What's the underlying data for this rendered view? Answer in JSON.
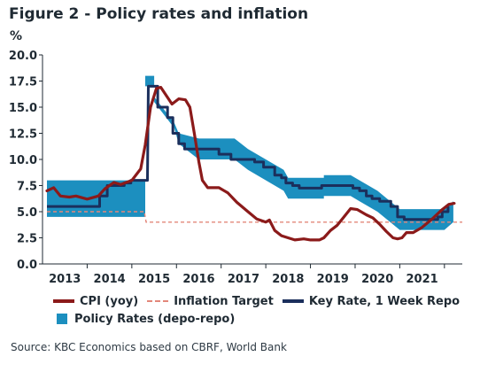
{
  "figure": {
    "title": "Figure 2 - Policy rates and inflation",
    "unit": "%",
    "source": "Source: KBC Economics based on CBRF, World Bank"
  },
  "chart_data": {
    "type": "line",
    "title": "Figure 2 - Policy rates and inflation",
    "ylabel": "%",
    "ylim": [
      0,
      20
    ],
    "yticks": [
      "0.0",
      "2.5",
      "5.0",
      "7.5",
      "10.0",
      "12.5",
      "15.0",
      "17.5",
      "20.0"
    ],
    "xticks": [
      "2013",
      "2014",
      "2015",
      "2016",
      "2017",
      "2018",
      "2019",
      "2020",
      "2021"
    ],
    "grid": false,
    "legend_position": "bottom",
    "colors": {
      "cpi": "#8b1a1a",
      "target": "#e3877a",
      "key_rate": "#1b2f5c",
      "band": "#1c8fbf"
    },
    "series": [
      {
        "name": "CPI (yoy)",
        "type": "line",
        "points": [
          [
            2012.6,
            7.0
          ],
          [
            2012.75,
            7.3
          ],
          [
            2012.9,
            6.5
          ],
          [
            2013.1,
            6.4
          ],
          [
            2013.25,
            6.5
          ],
          [
            2013.5,
            6.2
          ],
          [
            2013.75,
            6.5
          ],
          [
            2013.9,
            7.2
          ],
          [
            2014.1,
            7.8
          ],
          [
            2014.25,
            7.6
          ],
          [
            2014.5,
            8.0
          ],
          [
            2014.7,
            9.1
          ],
          [
            2014.8,
            11.4
          ],
          [
            2014.92,
            15.0
          ],
          [
            2015.05,
            16.8
          ],
          [
            2015.15,
            16.9
          ],
          [
            2015.4,
            15.3
          ],
          [
            2015.55,
            15.8
          ],
          [
            2015.7,
            15.7
          ],
          [
            2015.8,
            15.0
          ],
          [
            2015.9,
            12.5
          ],
          [
            2016.0,
            9.8
          ],
          [
            2016.08,
            8.0
          ],
          [
            2016.2,
            7.3
          ],
          [
            2016.45,
            7.3
          ],
          [
            2016.65,
            6.8
          ],
          [
            2016.85,
            5.9
          ],
          [
            2017.1,
            5.0
          ],
          [
            2017.3,
            4.3
          ],
          [
            2017.5,
            4.0
          ],
          [
            2017.58,
            4.2
          ],
          [
            2017.7,
            3.2
          ],
          [
            2017.85,
            2.7
          ],
          [
            2018.0,
            2.5
          ],
          [
            2018.15,
            2.3
          ],
          [
            2018.35,
            2.4
          ],
          [
            2018.5,
            2.3
          ],
          [
            2018.7,
            2.3
          ],
          [
            2018.8,
            2.5
          ],
          [
            2018.95,
            3.2
          ],
          [
            2019.1,
            3.7
          ],
          [
            2019.25,
            4.5
          ],
          [
            2019.4,
            5.3
          ],
          [
            2019.55,
            5.2
          ],
          [
            2019.75,
            4.7
          ],
          [
            2019.9,
            4.4
          ],
          [
            2020.05,
            3.8
          ],
          [
            2020.2,
            3.1
          ],
          [
            2020.35,
            2.5
          ],
          [
            2020.45,
            2.4
          ],
          [
            2020.55,
            2.5
          ],
          [
            2020.65,
            3.0
          ],
          [
            2020.8,
            3.0
          ],
          [
            2021.0,
            3.5
          ],
          [
            2021.25,
            4.4
          ],
          [
            2021.45,
            5.2
          ],
          [
            2021.6,
            5.7
          ],
          [
            2021.72,
            5.8
          ]
        ]
      },
      {
        "name": "Inflation Target",
        "type": "step",
        "points": [
          [
            2012.6,
            5.0
          ],
          [
            2014.78,
            5.0
          ],
          [
            2014.82,
            4.0
          ],
          [
            2021.9,
            4.0
          ]
        ]
      },
      {
        "name": "Key Rate, 1 Week Repo",
        "type": "step",
        "points": [
          [
            2012.6,
            5.5
          ],
          [
            2013.78,
            5.5
          ],
          [
            2013.78,
            6.5
          ],
          [
            2013.95,
            6.5
          ],
          [
            2013.95,
            7.5
          ],
          [
            2014.33,
            7.5
          ],
          [
            2014.33,
            7.75
          ],
          [
            2014.48,
            7.75
          ],
          [
            2014.48,
            8.0
          ],
          [
            2014.85,
            8.0
          ],
          [
            2014.87,
            17.0
          ],
          [
            2015.08,
            17.0
          ],
          [
            2015.08,
            15.0
          ],
          [
            2015.3,
            15.0
          ],
          [
            2015.3,
            14.0
          ],
          [
            2015.42,
            14.0
          ],
          [
            2015.42,
            12.5
          ],
          [
            2015.55,
            12.5
          ],
          [
            2015.55,
            11.5
          ],
          [
            2015.68,
            11.5
          ],
          [
            2015.68,
            11.0
          ],
          [
            2016.45,
            11.0
          ],
          [
            2016.45,
            10.5
          ],
          [
            2016.72,
            10.5
          ],
          [
            2016.72,
            10.0
          ],
          [
            2017.25,
            10.0
          ],
          [
            2017.25,
            9.75
          ],
          [
            2017.45,
            9.75
          ],
          [
            2017.45,
            9.25
          ],
          [
            2017.7,
            9.25
          ],
          [
            2017.7,
            8.5
          ],
          [
            2017.85,
            8.5
          ],
          [
            2017.85,
            8.25
          ],
          [
            2017.95,
            8.25
          ],
          [
            2017.95,
            7.75
          ],
          [
            2018.1,
            7.75
          ],
          [
            2018.1,
            7.5
          ],
          [
            2018.25,
            7.5
          ],
          [
            2018.25,
            7.25
          ],
          [
            2018.75,
            7.25
          ],
          [
            2018.75,
            7.5
          ],
          [
            2019.45,
            7.5
          ],
          [
            2019.45,
            7.25
          ],
          [
            2019.6,
            7.25
          ],
          [
            2019.6,
            7.0
          ],
          [
            2019.75,
            7.0
          ],
          [
            2019.75,
            6.5
          ],
          [
            2019.88,
            6.5
          ],
          [
            2019.88,
            6.25
          ],
          [
            2020.05,
            6.25
          ],
          [
            2020.05,
            6.0
          ],
          [
            2020.3,
            6.0
          ],
          [
            2020.3,
            5.5
          ],
          [
            2020.45,
            5.5
          ],
          [
            2020.45,
            4.5
          ],
          [
            2020.6,
            4.5
          ],
          [
            2020.6,
            4.25
          ],
          [
            2021.35,
            4.25
          ],
          [
            2021.35,
            4.5
          ],
          [
            2021.45,
            4.5
          ],
          [
            2021.45,
            5.0
          ],
          [
            2021.58,
            5.0
          ],
          [
            2021.58,
            5.5
          ]
        ]
      },
      {
        "name": "Policy Rates (depo-repo)",
        "type": "band",
        "lower": [
          [
            2012.6,
            4.5
          ],
          [
            2014.8,
            4.5
          ],
          [
            2014.8,
            17.0
          ],
          [
            2015.0,
            17.0
          ],
          [
            2015.0,
            15.5
          ],
          [
            2015.45,
            13.0
          ],
          [
            2015.55,
            11.5
          ],
          [
            2016.0,
            10.0
          ],
          [
            2016.8,
            10.0
          ],
          [
            2017.1,
            9.0
          ],
          [
            2017.9,
            7.0
          ],
          [
            2018.0,
            6.25
          ],
          [
            2018.8,
            6.25
          ],
          [
            2018.8,
            6.5
          ],
          [
            2019.4,
            6.5
          ],
          [
            2019.6,
            6.0
          ],
          [
            2020.0,
            5.0
          ],
          [
            2020.5,
            3.25
          ],
          [
            2021.5,
            3.25
          ],
          [
            2021.7,
            4.0
          ]
        ],
        "upper": [
          [
            2012.6,
            8.0
          ],
          [
            2014.8,
            8.0
          ],
          [
            2014.8,
            18.0
          ],
          [
            2015.0,
            18.0
          ],
          [
            2015.0,
            16.0
          ],
          [
            2015.45,
            13.5
          ],
          [
            2015.55,
            12.5
          ],
          [
            2016.0,
            12.0
          ],
          [
            2016.8,
            12.0
          ],
          [
            2017.1,
            11.0
          ],
          [
            2017.9,
            9.0
          ],
          [
            2018.0,
            8.25
          ],
          [
            2018.8,
            8.25
          ],
          [
            2018.8,
            8.5
          ],
          [
            2019.4,
            8.5
          ],
          [
            2019.6,
            8.0
          ],
          [
            2020.0,
            7.0
          ],
          [
            2020.5,
            5.25
          ],
          [
            2021.5,
            5.25
          ],
          [
            2021.7,
            6.0
          ]
        ]
      }
    ]
  },
  "legend": {
    "cpi": "CPI (yoy)",
    "target": "Inflation Target",
    "key_rate": "Key Rate, 1 Week Repo",
    "band": "Policy Rates (depo-repo)"
  }
}
